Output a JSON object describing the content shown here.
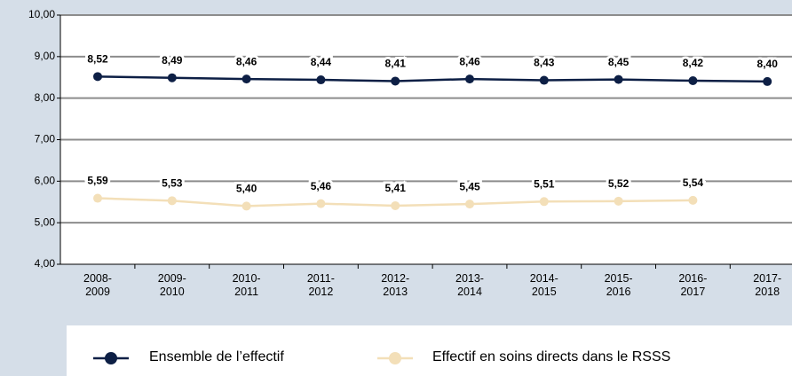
{
  "chart_data": {
    "type": "line",
    "categories": [
      "2008-2009",
      "2009-2010",
      "2010-2011",
      "2011-2012",
      "2012-2013",
      "2013-2014",
      "2014-2015",
      "2015-2016",
      "2016-2017",
      "2017-2018"
    ],
    "series": [
      {
        "name": "Ensemble de l’effectif",
        "color": "#0d1f45",
        "values": [
          8.52,
          8.49,
          8.46,
          8.44,
          8.41,
          8.46,
          8.43,
          8.45,
          8.42,
          8.4
        ],
        "value_labels": [
          "8,52",
          "8,49",
          "8,46",
          "8,44",
          "8,41",
          "8,46",
          "8,43",
          "8,45",
          "8,42",
          "8,40"
        ]
      },
      {
        "name": "Effectif en soins directs dans le RSSS",
        "color": "#f3dfb8",
        "values": [
          5.59,
          5.53,
          5.4,
          5.46,
          5.41,
          5.45,
          5.51,
          5.52,
          5.54,
          null
        ],
        "value_labels": [
          "5,59",
          "5,53",
          "5,40",
          "5,46",
          "5,41",
          "5,45",
          "5,51",
          "5,52",
          "5,54",
          null
        ]
      }
    ],
    "ylim": [
      4,
      10
    ],
    "yticks": [
      {
        "value": 4,
        "label": "4,00"
      },
      {
        "value": 5,
        "label": "5,00"
      },
      {
        "value": 6,
        "label": "6,00"
      },
      {
        "value": 7,
        "label": "7,00"
      },
      {
        "value": 8,
        "label": "8,00"
      },
      {
        "value": 9,
        "label": "9,00"
      },
      {
        "value": 10,
        "label": "10,00"
      }
    ],
    "grid": true
  }
}
